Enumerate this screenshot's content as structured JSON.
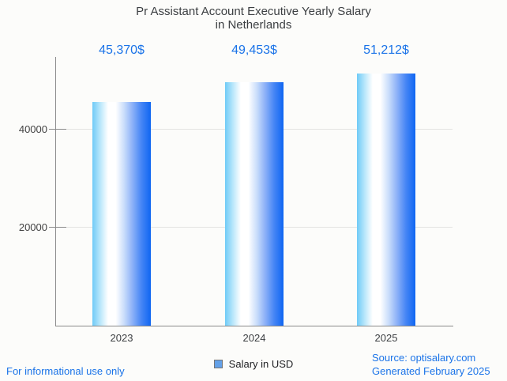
{
  "header": {
    "title_line1": "Pr Assistant Account Executive Yearly Salary",
    "title_line2": "in Netherlands"
  },
  "chart_data": {
    "type": "bar",
    "title": "Pr Assistant Account Executive Yearly Salary in Netherlands",
    "categories": [
      "2023",
      "2024",
      "2025"
    ],
    "series": [
      {
        "name": "Salary in USD",
        "values": [
          45370,
          49453,
          51212
        ]
      }
    ],
    "value_labels": [
      "45,370$",
      "49,453$",
      "51,212$"
    ],
    "xlabel": "",
    "ylabel": "",
    "yticks": [
      20000,
      40000
    ],
    "ylim": [
      0,
      54600
    ],
    "grid": "horizontal",
    "legend_position": "bottom"
  },
  "legend": {
    "label": "Salary in USD"
  },
  "footer": {
    "disclaimer": "For informational use only",
    "source": "Source: optisalary.com",
    "generated": "Generated February 2025"
  },
  "colors": {
    "accent_blue": "#1a73e8",
    "title_text": "#3d4043",
    "tick_text": "#424242",
    "axis_line": "#8a8a8a",
    "gridline": "#e4e4e2",
    "background": "#fcfcfa",
    "legend_marker_fill": "#64a1e8",
    "legend_marker_border": "#757575",
    "bar_gradient_colors": [
      "#6fcbf7",
      "#bce8fb",
      "#ffffff",
      "#ffffff",
      "#cbdefb",
      "#8fb3f8",
      "#4585f5",
      "#0f66f2"
    ],
    "bar_gradient_stops": [
      0,
      14,
      27,
      40,
      54,
      68,
      84,
      100
    ]
  }
}
